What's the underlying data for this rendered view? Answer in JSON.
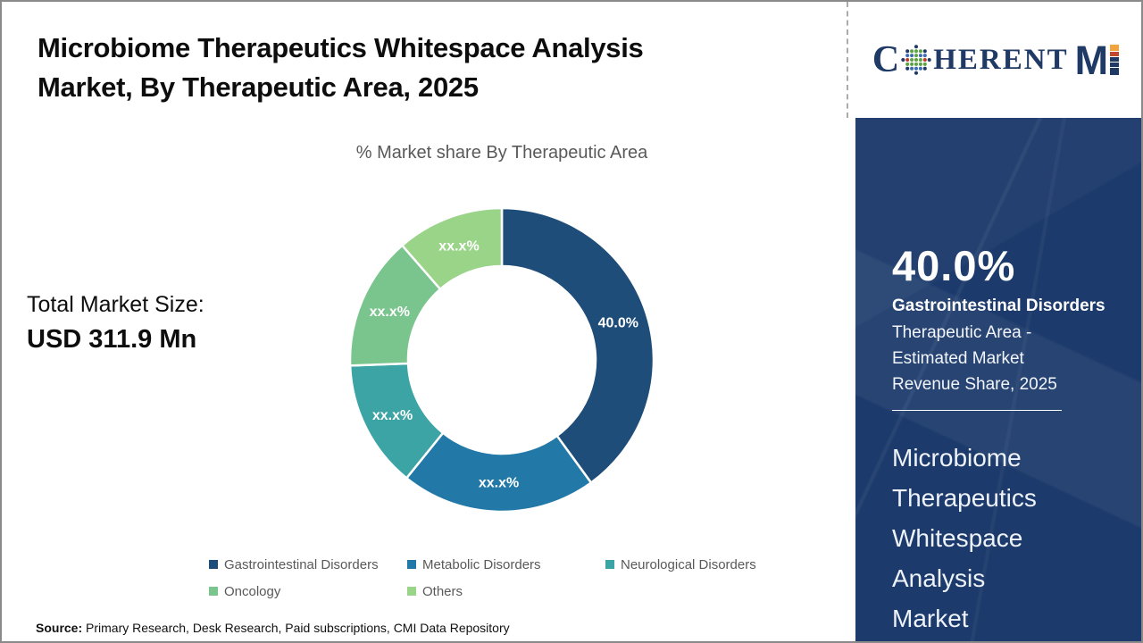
{
  "header": {
    "title_line1": "Microbiome Therapeutics Whitespace Analysis",
    "title_line2": "Market, By Therapeutic Area, 2025"
  },
  "logo": {
    "alt": "CoherentMI",
    "c": "C",
    "herent": "HERENT",
    "m": "M",
    "navy": "#203a66",
    "i_segments": [
      "#f2a43c",
      "#c2472e",
      "#203a66",
      "#203a66",
      "#203a66"
    ],
    "globe_palette": {
      "rim": "#1f3864",
      "center": "#5ba245",
      "mix": [
        "#c0392b",
        "#5ba245",
        "#3b6cb4"
      ]
    }
  },
  "total_market": {
    "label": "Total Market Size:",
    "value": "USD 311.9 Mn"
  },
  "chart_data": {
    "type": "donut",
    "title": "% Market share By Therapeutic Area",
    "categories": [
      "Gastrointestinal Disorders",
      "Metabolic Disorders",
      "Neurological Disorders",
      "Oncology",
      "Others"
    ],
    "values": [
      40.0,
      20.8,
      13.6,
      14.2,
      11.4
    ],
    "labels": [
      "40.0%",
      "xx.x%",
      "xx.x%",
      "xx.x%",
      "xx.x%"
    ],
    "colors": [
      "#1f4d79",
      "#2279a8",
      "#3ca4a4",
      "#7ac48d",
      "#9ad489"
    ],
    "legend_position": "bottom",
    "start_angle_deg": 0,
    "outer_radius": 170,
    "inner_radius": 105,
    "label_radius": 137,
    "segment_gap_color": "#ffffff"
  },
  "sidebar": {
    "percent": "40.0%",
    "highlight": "Gastrointestinal Disorders",
    "description": "Therapeutic Area - Estimated Market Revenue Share, 2025",
    "market_name": "Microbiome\nTherapeutics\nWhitespace\nAnalysis\nMarket",
    "background": "#1c3a6b"
  },
  "source": {
    "label": "Source:",
    "text": " Primary Research, Desk Research, Paid subscriptions, CMI Data Repository"
  }
}
